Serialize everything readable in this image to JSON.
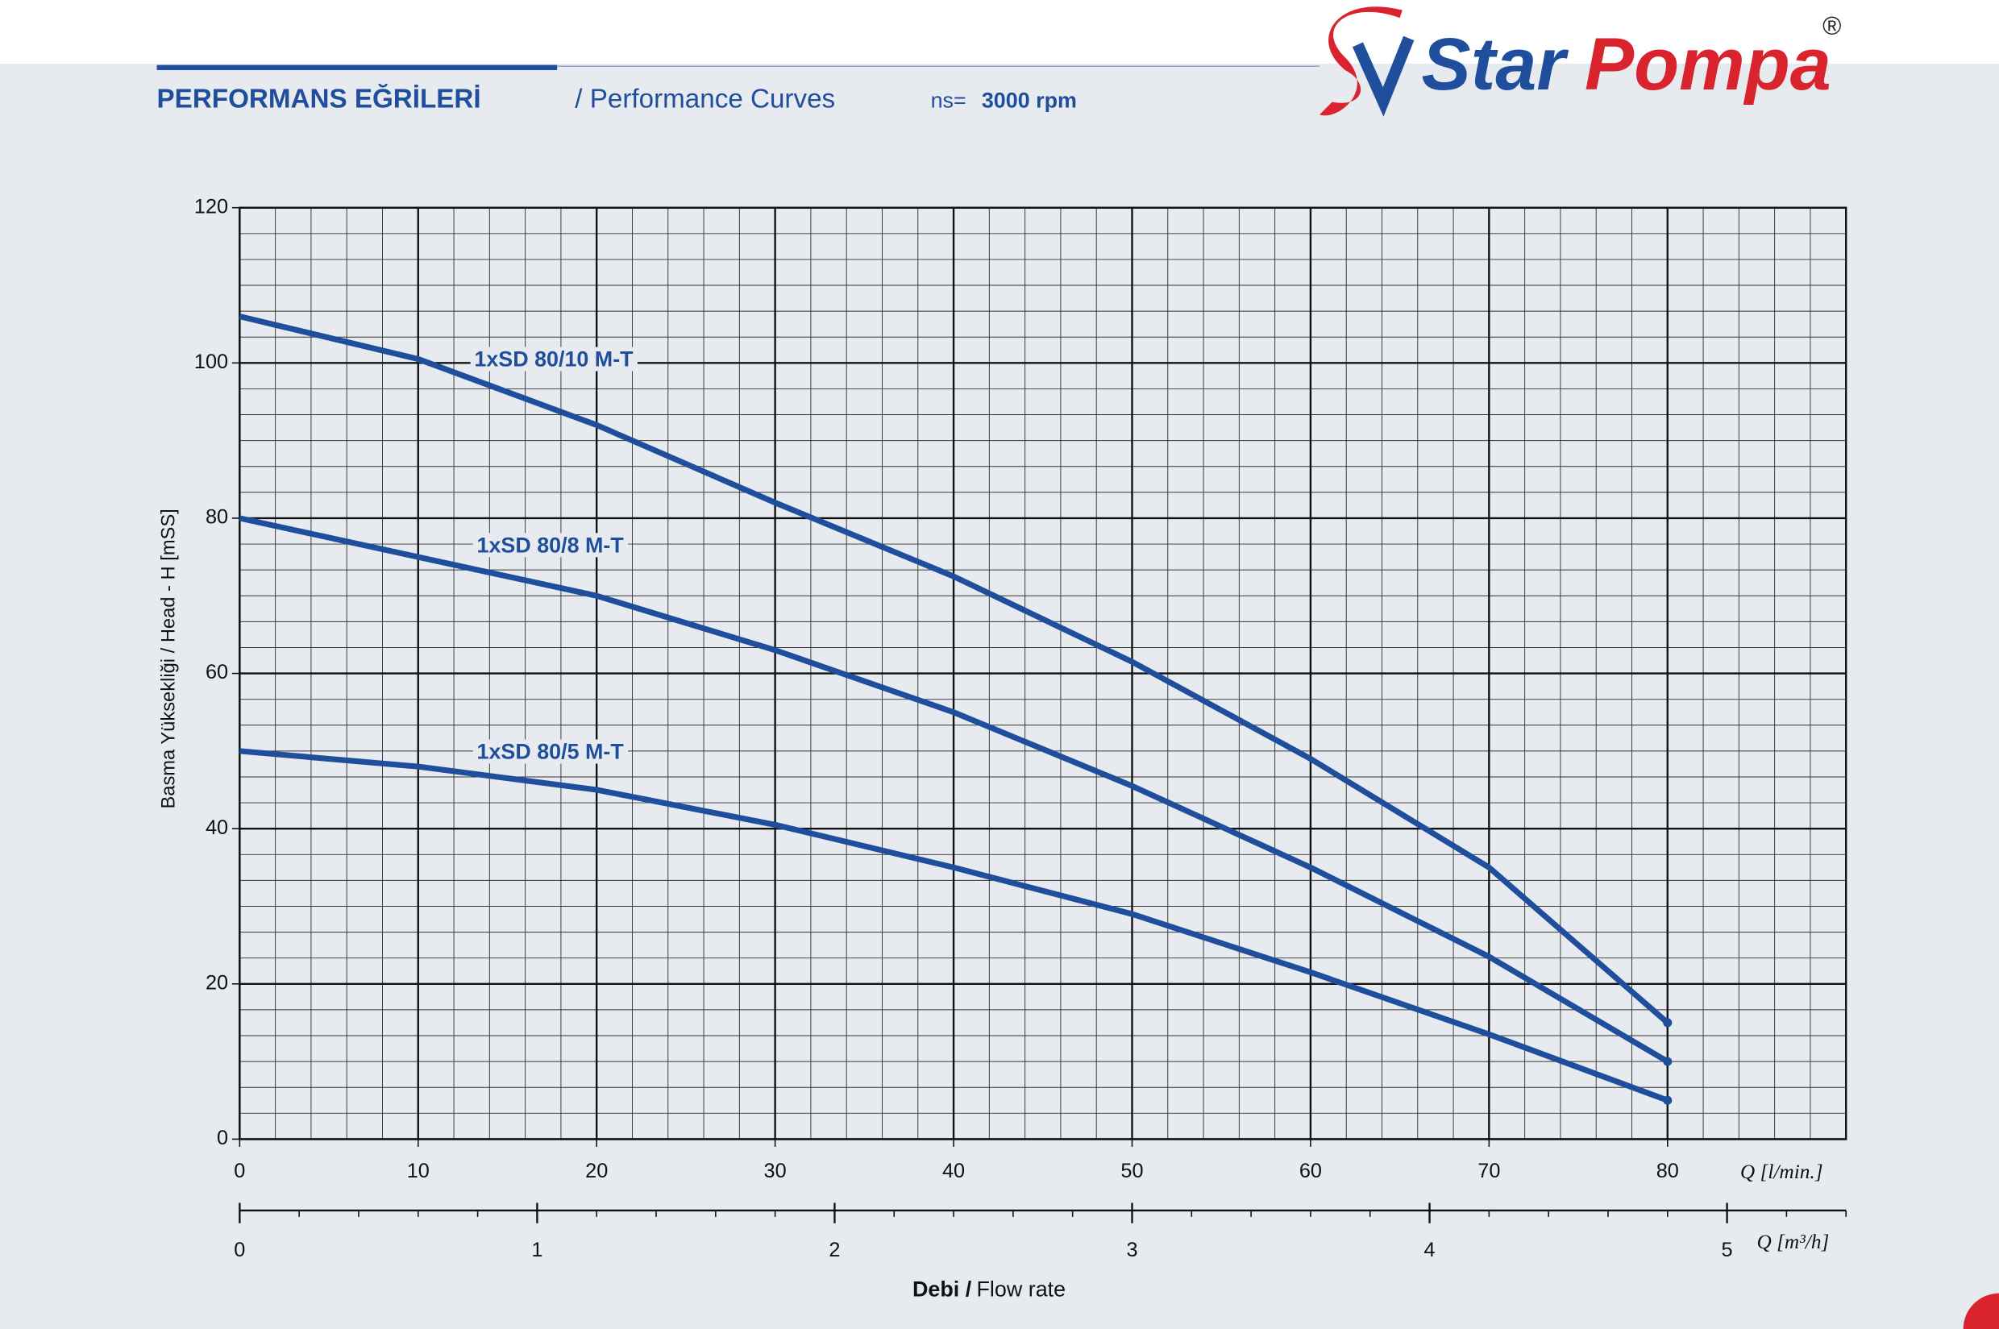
{
  "chart_data": {
    "type": "line",
    "title": "PERFORMANS EĞRİLERİ",
    "subtitle": "/ Performance Curves",
    "speed_label": "ns=",
    "speed_value": "3000 rpm",
    "logo": {
      "word1": "Star",
      "word2": "Pompa",
      "mark": "®"
    },
    "y_label": "Basma Yüksekliği / Head - H [mSS]",
    "x_label": "Q [l/min.]",
    "x2_label": "Q [m³/h]",
    "footer_bold": "Debi /",
    "footer": "Flow rate",
    "x": [
      0,
      10,
      20,
      30,
      40,
      50,
      60,
      70,
      80
    ],
    "xlim": [
      0,
      90
    ],
    "xticks": [
      0,
      10,
      20,
      30,
      40,
      50,
      60,
      70,
      80
    ],
    "ylim": [
      0,
      120
    ],
    "yticks": [
      0,
      20,
      40,
      60,
      80,
      100,
      120
    ],
    "x2lim": [
      0,
      5.4
    ],
    "x2ticks": [
      0,
      1,
      2,
      3,
      4,
      5
    ],
    "grid": true,
    "series": [
      {
        "name": "1xSD 80/10 M-T",
        "color": "#1f4e9c",
        "values": [
          106,
          100.5,
          92,
          82,
          72.5,
          61.5,
          49,
          35,
          15
        ]
      },
      {
        "name": "1xSD 80/8 M-T",
        "color": "#1f4e9c",
        "values": [
          80,
          75,
          70,
          63,
          55,
          45.5,
          35,
          23.5,
          10
        ]
      },
      {
        "name": "1xSD 80/5 M-T",
        "color": "#1f4e9c",
        "values": [
          50,
          48,
          45,
          40.5,
          35,
          29,
          21.5,
          13.5,
          5
        ]
      }
    ]
  }
}
